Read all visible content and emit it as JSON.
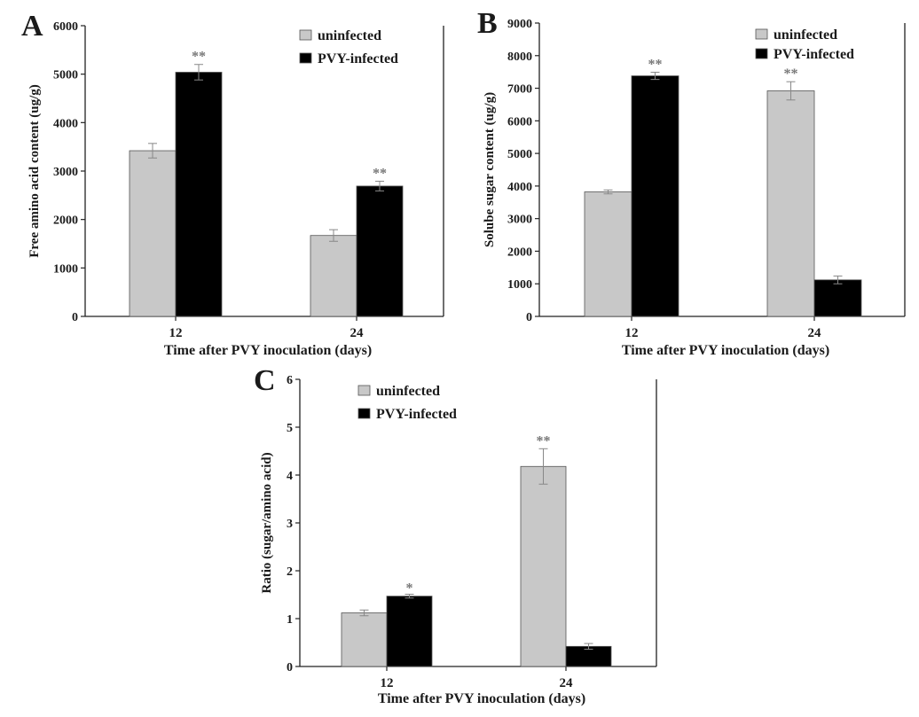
{
  "chart_data": [
    {
      "type": "bar",
      "panel": "A",
      "categories": [
        "12",
        "24"
      ],
      "series": [
        {
          "name": "uninfected",
          "values": [
            3420,
            1670
          ],
          "errors": [
            150,
            120
          ],
          "color": "#c8c8c8"
        },
        {
          "name": "PVY-infected",
          "values": [
            5040,
            2690
          ],
          "errors": [
            160,
            100
          ],
          "color": "#000000"
        }
      ],
      "significance": [
        {
          "category": "12",
          "series": "PVY-infected",
          "label": "**"
        },
        {
          "category": "24",
          "series": "PVY-infected",
          "label": "**"
        }
      ],
      "title": "",
      "xlabel": "Time after PVY inoculation (days)",
      "ylabel": "Free amino acid content (ug/g)",
      "ylim": [
        0,
        6000
      ],
      "yticks": [
        0,
        1000,
        2000,
        3000,
        4000,
        5000,
        6000
      ],
      "legend_position": "top-right"
    },
    {
      "type": "bar",
      "panel": "B",
      "categories": [
        "12",
        "24"
      ],
      "series": [
        {
          "name": "uninfected",
          "values": [
            3820,
            6920
          ],
          "errors": [
            60,
            280
          ],
          "color": "#c8c8c8"
        },
        {
          "name": "PVY-infected",
          "values": [
            7380,
            1120
          ],
          "errors": [
            110,
            120
          ],
          "color": "#000000"
        }
      ],
      "significance": [
        {
          "category": "12",
          "series": "PVY-infected",
          "label": "**"
        },
        {
          "category": "24",
          "series": "uninfected",
          "label": "**"
        }
      ],
      "title": "",
      "xlabel": "Time after PVY inoculation (days)",
      "ylabel": "Solube sugar content (ug/g)",
      "ylim": [
        0,
        9000
      ],
      "yticks": [
        0,
        1000,
        2000,
        3000,
        4000,
        5000,
        6000,
        7000,
        8000,
        9000
      ],
      "legend_position": "top-right"
    },
    {
      "type": "bar",
      "panel": "C",
      "categories": [
        "12",
        "24"
      ],
      "series": [
        {
          "name": "uninfected",
          "values": [
            1.12,
            4.18
          ],
          "errors": [
            0.06,
            0.37
          ],
          "color": "#c8c8c8"
        },
        {
          "name": "PVY-infected",
          "values": [
            1.47,
            0.42
          ],
          "errors": [
            0.04,
            0.06
          ],
          "color": "#000000"
        }
      ],
      "significance": [
        {
          "category": "12",
          "series": "PVY-infected",
          "label": "*"
        },
        {
          "category": "24",
          "series": "uninfected",
          "label": "**"
        }
      ],
      "title": "",
      "xlabel": "Time after PVY inoculation (days)",
      "ylabel": "Ratio (sugar/amino acid)",
      "ylim": [
        0,
        6
      ],
      "yticks": [
        0,
        1,
        2,
        3,
        4,
        5,
        6
      ],
      "legend_position": "top-left"
    }
  ]
}
